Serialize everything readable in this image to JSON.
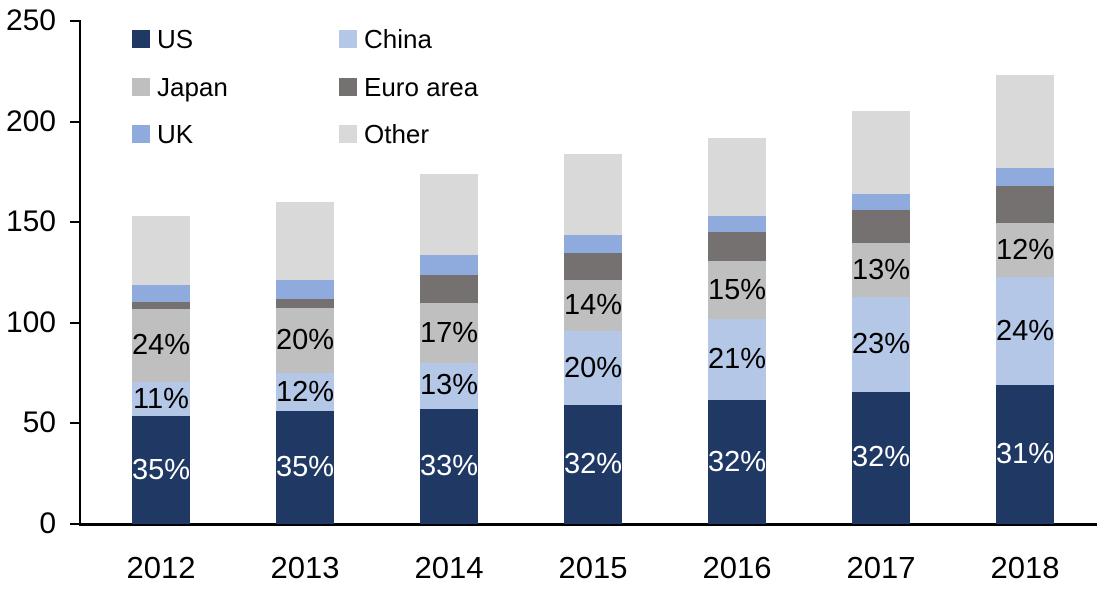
{
  "chart_data": {
    "type": "bar",
    "variant": "stacked-column",
    "title": "",
    "background_color": "#ffffff",
    "axis_color": "#000000",
    "text_color": "#000000",
    "grid": false,
    "categories": [
      "2012",
      "2013",
      "2014",
      "2015",
      "2016",
      "2017",
      "2018"
    ],
    "totals": [
      153,
      160,
      174,
      184,
      192,
      205,
      223
    ],
    "series": [
      {
        "name": "US",
        "color": "#1f3864",
        "values": [
          53.6,
          56.0,
          57.4,
          58.9,
          61.4,
          65.6,
          69.1
        ],
        "labels": [
          "35%",
          "35%",
          "33%",
          "32%",
          "32%",
          "32%",
          "31%"
        ],
        "label_color": "#ffffff"
      },
      {
        "name": "China",
        "color": "#b4c7e7",
        "values": [
          16.8,
          19.2,
          22.6,
          36.8,
          40.3,
          47.2,
          53.5
        ],
        "labels": [
          "11%",
          "12%",
          "13%",
          "20%",
          "21%",
          "23%",
          "24%"
        ],
        "label_color": "#000000"
      },
      {
        "name": "Japan",
        "color": "#bfbfbf",
        "values": [
          36.7,
          32.0,
          29.6,
          25.8,
          28.8,
          26.7,
          26.8
        ],
        "labels": [
          "24%",
          "20%",
          "17%",
          "14%",
          "15%",
          "13%",
          "12%"
        ],
        "label_color": "#000000"
      },
      {
        "name": "Euro area",
        "color": "#767171",
        "values": [
          3.4,
          4.5,
          14.4,
          13.1,
          14.4,
          16.6,
          18.5
        ],
        "labels": null,
        "label_color": null
      },
      {
        "name": "UK",
        "color": "#8faadc",
        "values": [
          8.4,
          9.6,
          9.6,
          9.0,
          8.4,
          8.0,
          8.9
        ],
        "labels": null,
        "label_color": null
      },
      {
        "name": "Other",
        "color": "#d9d9d9",
        "values": [
          34.1,
          38.7,
          40.4,
          40.4,
          38.7,
          41.0,
          46.2
        ],
        "labels": null,
        "label_color": null
      }
    ],
    "y_axis": {
      "min": 0,
      "max": 250,
      "tick_interval": 50,
      "tick_labels": [
        "0",
        "50",
        "100",
        "150",
        "200",
        "250"
      ]
    },
    "legend": {
      "position": "top-left",
      "columns": 2,
      "entries": [
        "US",
        "China",
        "Japan",
        "Euro area",
        "UK",
        "Other"
      ]
    }
  }
}
